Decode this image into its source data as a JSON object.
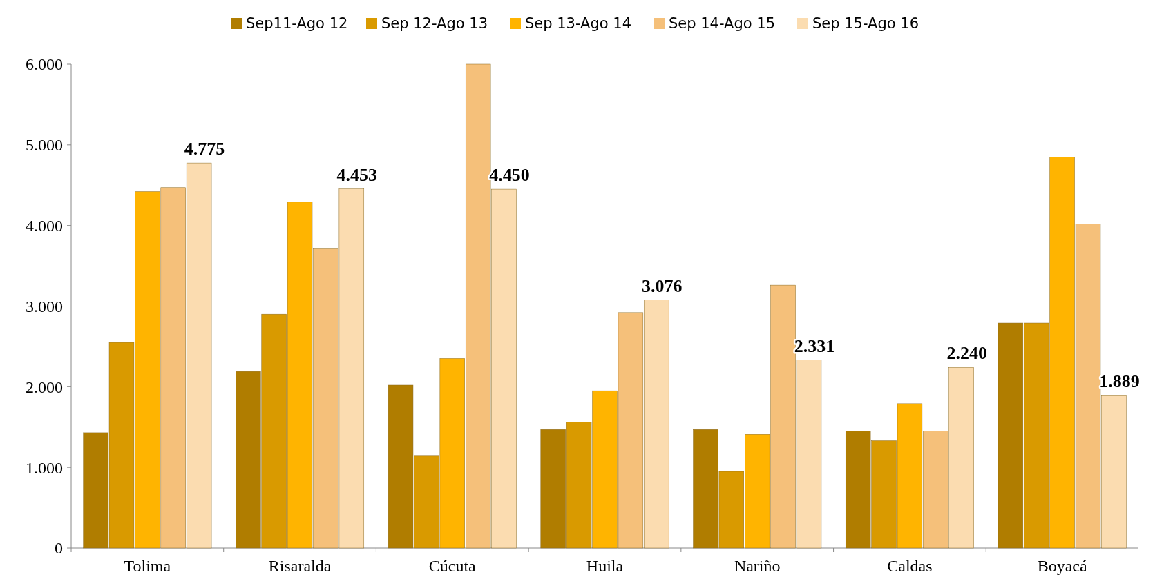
{
  "chart_data": {
    "type": "bar",
    "categories": [
      "Tolima",
      "Risaralda",
      "Cúcuta",
      "Huila",
      "Nariño",
      "Caldas",
      "Boyacá"
    ],
    "series": [
      {
        "name": "Sep11-Ago 12",
        "color": "#b07d00",
        "values": [
          1430,
          2190,
          2020,
          1470,
          1470,
          1450,
          2790
        ]
      },
      {
        "name": "Sep 12-Ago 13",
        "color": "#d99a00",
        "values": [
          2550,
          2900,
          1140,
          1560,
          950,
          1330,
          2790
        ]
      },
      {
        "name": "Sep 13-Ago 14",
        "color": "#ffb400",
        "values": [
          4420,
          4290,
          2350,
          1950,
          1410,
          1790,
          4850
        ]
      },
      {
        "name": "Sep 14-Ago 15",
        "color": "#f5c07a",
        "values": [
          4470,
          3710,
          6000,
          2920,
          3260,
          1450,
          4020
        ]
      },
      {
        "name": "Sep 15-Ago 16",
        "color": "#fbdcb0",
        "values": [
          4775,
          4453,
          4450,
          3076,
          2331,
          2240,
          1889
        ],
        "value_labels": [
          "4.775",
          "4.453",
          "4.450",
          "3.076",
          "2.331",
          "2.240",
          "1.889"
        ]
      }
    ],
    "ylim": [
      0,
      6000
    ],
    "yticks": [
      {
        "value": 0,
        "label": "0"
      },
      {
        "value": 1000,
        "label": "1.000"
      },
      {
        "value": 2000,
        "label": "2.000"
      },
      {
        "value": 3000,
        "label": "3.000"
      },
      {
        "value": 4000,
        "label": "4.000"
      },
      {
        "value": 5000,
        "label": "5.000"
      },
      {
        "value": 6000,
        "label": "6.000"
      }
    ],
    "grid": false,
    "legend": "top"
  }
}
